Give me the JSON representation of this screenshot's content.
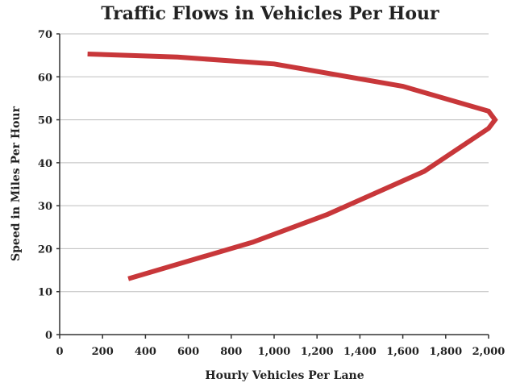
{
  "chart_data": {
    "type": "line",
    "title": "Traffic Flows in Vehicles Per Hour",
    "xlabel": "Hourly Vehicles Per Lane",
    "ylabel": "Speed in Miles Per Hour",
    "xlim": [
      0,
      2000
    ],
    "ylim": [
      0,
      70
    ],
    "x_ticks": [
      0,
      200,
      400,
      600,
      800,
      1000,
      1200,
      1400,
      1600,
      1800,
      2000
    ],
    "x_tick_labels": [
      "0",
      "200",
      "400",
      "600",
      "800",
      "1,000",
      "1,200",
      "1,400",
      "1,600",
      "1,800",
      "2,000"
    ],
    "y_ticks": [
      0,
      10,
      20,
      30,
      40,
      50,
      60,
      70
    ],
    "y_tick_labels": [
      "0",
      "10",
      "20",
      "30",
      "40",
      "50",
      "60",
      "70"
    ],
    "grid": "horizontal",
    "legend": "none",
    "series": [
      {
        "color": "#c8373a",
        "points": [
          {
            "x": 130,
            "y": 65.3
          },
          {
            "x": 550,
            "y": 64.6
          },
          {
            "x": 1000,
            "y": 63
          },
          {
            "x": 1600,
            "y": 57.8
          },
          {
            "x": 2000,
            "y": 52
          },
          {
            "x": 2030,
            "y": 50
          },
          {
            "x": 2000,
            "y": 48
          },
          {
            "x": 1700,
            "y": 38
          },
          {
            "x": 1250,
            "y": 28
          },
          {
            "x": 900,
            "y": 21.5
          },
          {
            "x": 320,
            "y": 13
          }
        ]
      }
    ]
  }
}
